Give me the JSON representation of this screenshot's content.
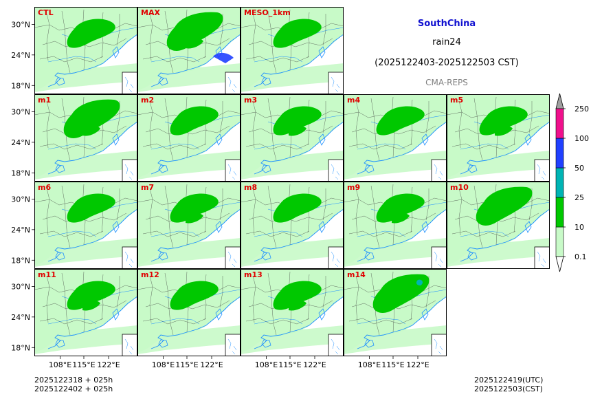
{
  "title": {
    "region": "SouthChina",
    "variable": "rain24",
    "period": "(2025122403-2025122503 CST)",
    "model": "CMA-REPS"
  },
  "panels": [
    [
      "CTL",
      "MAX",
      "MESO_1km"
    ],
    [
      "m1",
      "m2",
      "m3",
      "m4",
      "m5"
    ],
    [
      "m6",
      "m7",
      "m8",
      "m9",
      "m10"
    ],
    [
      "m11",
      "m12",
      "m13",
      "m14"
    ]
  ],
  "axes": {
    "lat_ticks": [
      "30°N",
      "24°N",
      "18°N"
    ],
    "lon_ticks": [
      "108°E",
      "115°E",
      "122°E"
    ]
  },
  "colorbar": {
    "levels": [
      "0.1",
      "10",
      "25",
      "50",
      "100",
      "250"
    ],
    "colors": [
      "#c8fac8",
      "#00c800",
      "#00b4b4",
      "#2040ff",
      "#f0108c"
    ],
    "over_color": "#a0a0a0",
    "under_color": "#ffffff"
  },
  "footer": {
    "init_utc": "2025122318  +  025h",
    "init_cst": "2025122402  +  025h",
    "valid_utc": "2025122419(UTC)",
    "valid_cst": "2025122503(CST)"
  },
  "colors": {
    "label": "#e00000",
    "land": "#c8fac8",
    "heavy": "#00c800",
    "coast": "#1e90ff",
    "border": "#333333"
  }
}
